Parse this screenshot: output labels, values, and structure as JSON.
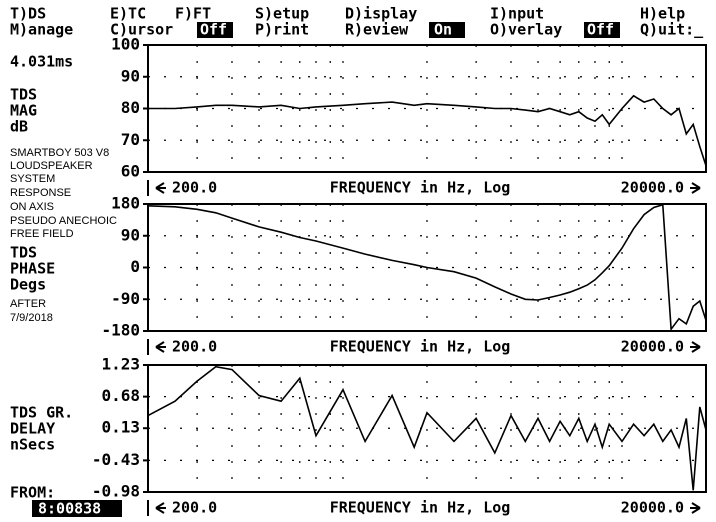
{
  "menu": {
    "tds": "T)DS",
    "etc": "E)TC",
    "fft": "F)FT",
    "setup": "S)etup",
    "display": "D)isplay",
    "input": "I)nput",
    "help": "H)elp",
    "manage": "M)anage",
    "cursor": "C)ursor",
    "cursor_state": "Off",
    "print": "P)rint",
    "review": "R)eview",
    "review_state": "On",
    "overlay": "O)verlay",
    "overlay_state": "Off",
    "quit": "Q)uit:_"
  },
  "sidebar": {
    "time": "4.031ms",
    "mag_label": [
      "TDS",
      "MAG",
      "dB"
    ],
    "notes": [
      "SMARTBOY 503 V8",
      "LOUDSPEAKER",
      "SYSTEM",
      "RESPONSE",
      "ON AXIS",
      "PSEUDO ANECHOIC",
      "FREE FIELD"
    ],
    "phase_label": [
      "TDS",
      "PHASE",
      "Degs"
    ],
    "date_note": [
      "AFTER",
      "7/9/2018"
    ],
    "delay_label": [
      "TDS GR.",
      "DELAY",
      "nSecs"
    ],
    "from_label": "FROM:",
    "from_value": "8:00838"
  },
  "chart_data": [
    {
      "type": "line",
      "x_label": "FREQUENCY in Hz, Log",
      "log_x": true,
      "grid": true,
      "color": "#000000",
      "x": [
        200,
        250,
        300,
        350,
        400,
        500,
        600,
        700,
        800,
        1000,
        1200,
        1500,
        1800,
        2000,
        2500,
        3000,
        3500,
        4000,
        4500,
        5000,
        5500,
        6000,
        6500,
        7000,
        7500,
        8000,
        8500,
        9000,
        10000,
        11000,
        12000,
        13000,
        14000,
        15000,
        16000,
        17000,
        18000,
        19000,
        20000
      ],
      "values": [
        80,
        80,
        80.5,
        81,
        81,
        80.5,
        81,
        80,
        80.5,
        81,
        81.5,
        82,
        81,
        81.5,
        81,
        80.5,
        80,
        80,
        79.5,
        79,
        80,
        79,
        78,
        79,
        77,
        76,
        78,
        75,
        80,
        84,
        82,
        83,
        80,
        78,
        80,
        72,
        75,
        68,
        62
      ],
      "xlim": [
        200,
        20000
      ],
      "xticks": [
        {
          "value": 200,
          "label": "200.0"
        },
        {
          "value": 20000,
          "label": "20000.0"
        }
      ],
      "xgrid": [
        300,
        400,
        500,
        600,
        700,
        800,
        900,
        1000,
        2000,
        3000,
        4000,
        5000,
        6000,
        7000,
        8000,
        9000,
        10000
      ],
      "ylim": [
        60,
        100
      ],
      "yticks": [
        100,
        90,
        80,
        70,
        60
      ]
    },
    {
      "type": "line",
      "x_label": "FREQUENCY in Hz, Log",
      "log_x": true,
      "grid": true,
      "color": "#000000",
      "x": [
        200,
        250,
        300,
        350,
        400,
        500,
        600,
        700,
        800,
        1000,
        1200,
        1500,
        1800,
        2000,
        2500,
        3000,
        3500,
        4000,
        4500,
        5000,
        5500,
        6000,
        6500,
        7000,
        7500,
        8000,
        8500,
        9000,
        10000,
        11000,
        12000,
        13000,
        14000,
        15000,
        16000,
        17000,
        18000,
        19000,
        20000
      ],
      "values": [
        175,
        172,
        165,
        155,
        140,
        115,
        100,
        85,
        75,
        55,
        38,
        20,
        8,
        0,
        -12,
        -30,
        -55,
        -75,
        -90,
        -92,
        -85,
        -78,
        -70,
        -60,
        -50,
        -35,
        -15,
        5,
        55,
        110,
        150,
        170,
        178,
        -175,
        -145,
        -160,
        -110,
        -95,
        -150
      ],
      "xlim": [
        200,
        20000
      ],
      "xticks": [
        {
          "value": 200,
          "label": "200.0"
        },
        {
          "value": 20000,
          "label": "20000.0"
        }
      ],
      "xgrid": [
        300,
        400,
        500,
        600,
        700,
        800,
        900,
        1000,
        2000,
        3000,
        4000,
        5000,
        6000,
        7000,
        8000,
        9000,
        10000
      ],
      "ylim": [
        -180,
        180
      ],
      "yticks": [
        180,
        90,
        0,
        -90,
        -180
      ]
    },
    {
      "type": "line",
      "x_label": "FREQUENCY in Hz, Log",
      "log_x": true,
      "grid": true,
      "color": "#000000",
      "x": [
        200,
        250,
        300,
        350,
        400,
        500,
        600,
        700,
        800,
        1000,
        1200,
        1500,
        1800,
        2000,
        2500,
        3000,
        3500,
        4000,
        4500,
        5000,
        5500,
        6000,
        6500,
        7000,
        7500,
        8000,
        8500,
        9000,
        10000,
        11000,
        12000,
        13000,
        14000,
        15000,
        16000,
        17000,
        18000,
        19000,
        20000
      ],
      "values": [
        0.35,
        0.6,
        0.95,
        1.2,
        1.15,
        0.7,
        0.6,
        1.0,
        0.0,
        0.8,
        -0.1,
        0.7,
        -0.2,
        0.4,
        -0.1,
        0.3,
        -0.3,
        0.35,
        -0.1,
        0.3,
        -0.1,
        0.25,
        0.0,
        0.3,
        -0.1,
        0.2,
        -0.2,
        0.2,
        -0.1,
        0.2,
        0.0,
        0.2,
        -0.1,
        0.1,
        -0.2,
        0.3,
        -0.95,
        0.5,
        0.1
      ],
      "xlim": [
        200,
        20000
      ],
      "xticks": [
        {
          "value": 200,
          "label": "200.0"
        },
        {
          "value": 20000,
          "label": "20000.0"
        }
      ],
      "xgrid": [
        300,
        400,
        500,
        600,
        700,
        800,
        900,
        1000,
        2000,
        3000,
        4000,
        5000,
        6000,
        7000,
        8000,
        9000,
        10000
      ],
      "ylim": [
        -0.98,
        1.23
      ],
      "yticks": [
        1.23,
        0.68,
        0.13,
        -0.43,
        -0.98
      ]
    }
  ]
}
